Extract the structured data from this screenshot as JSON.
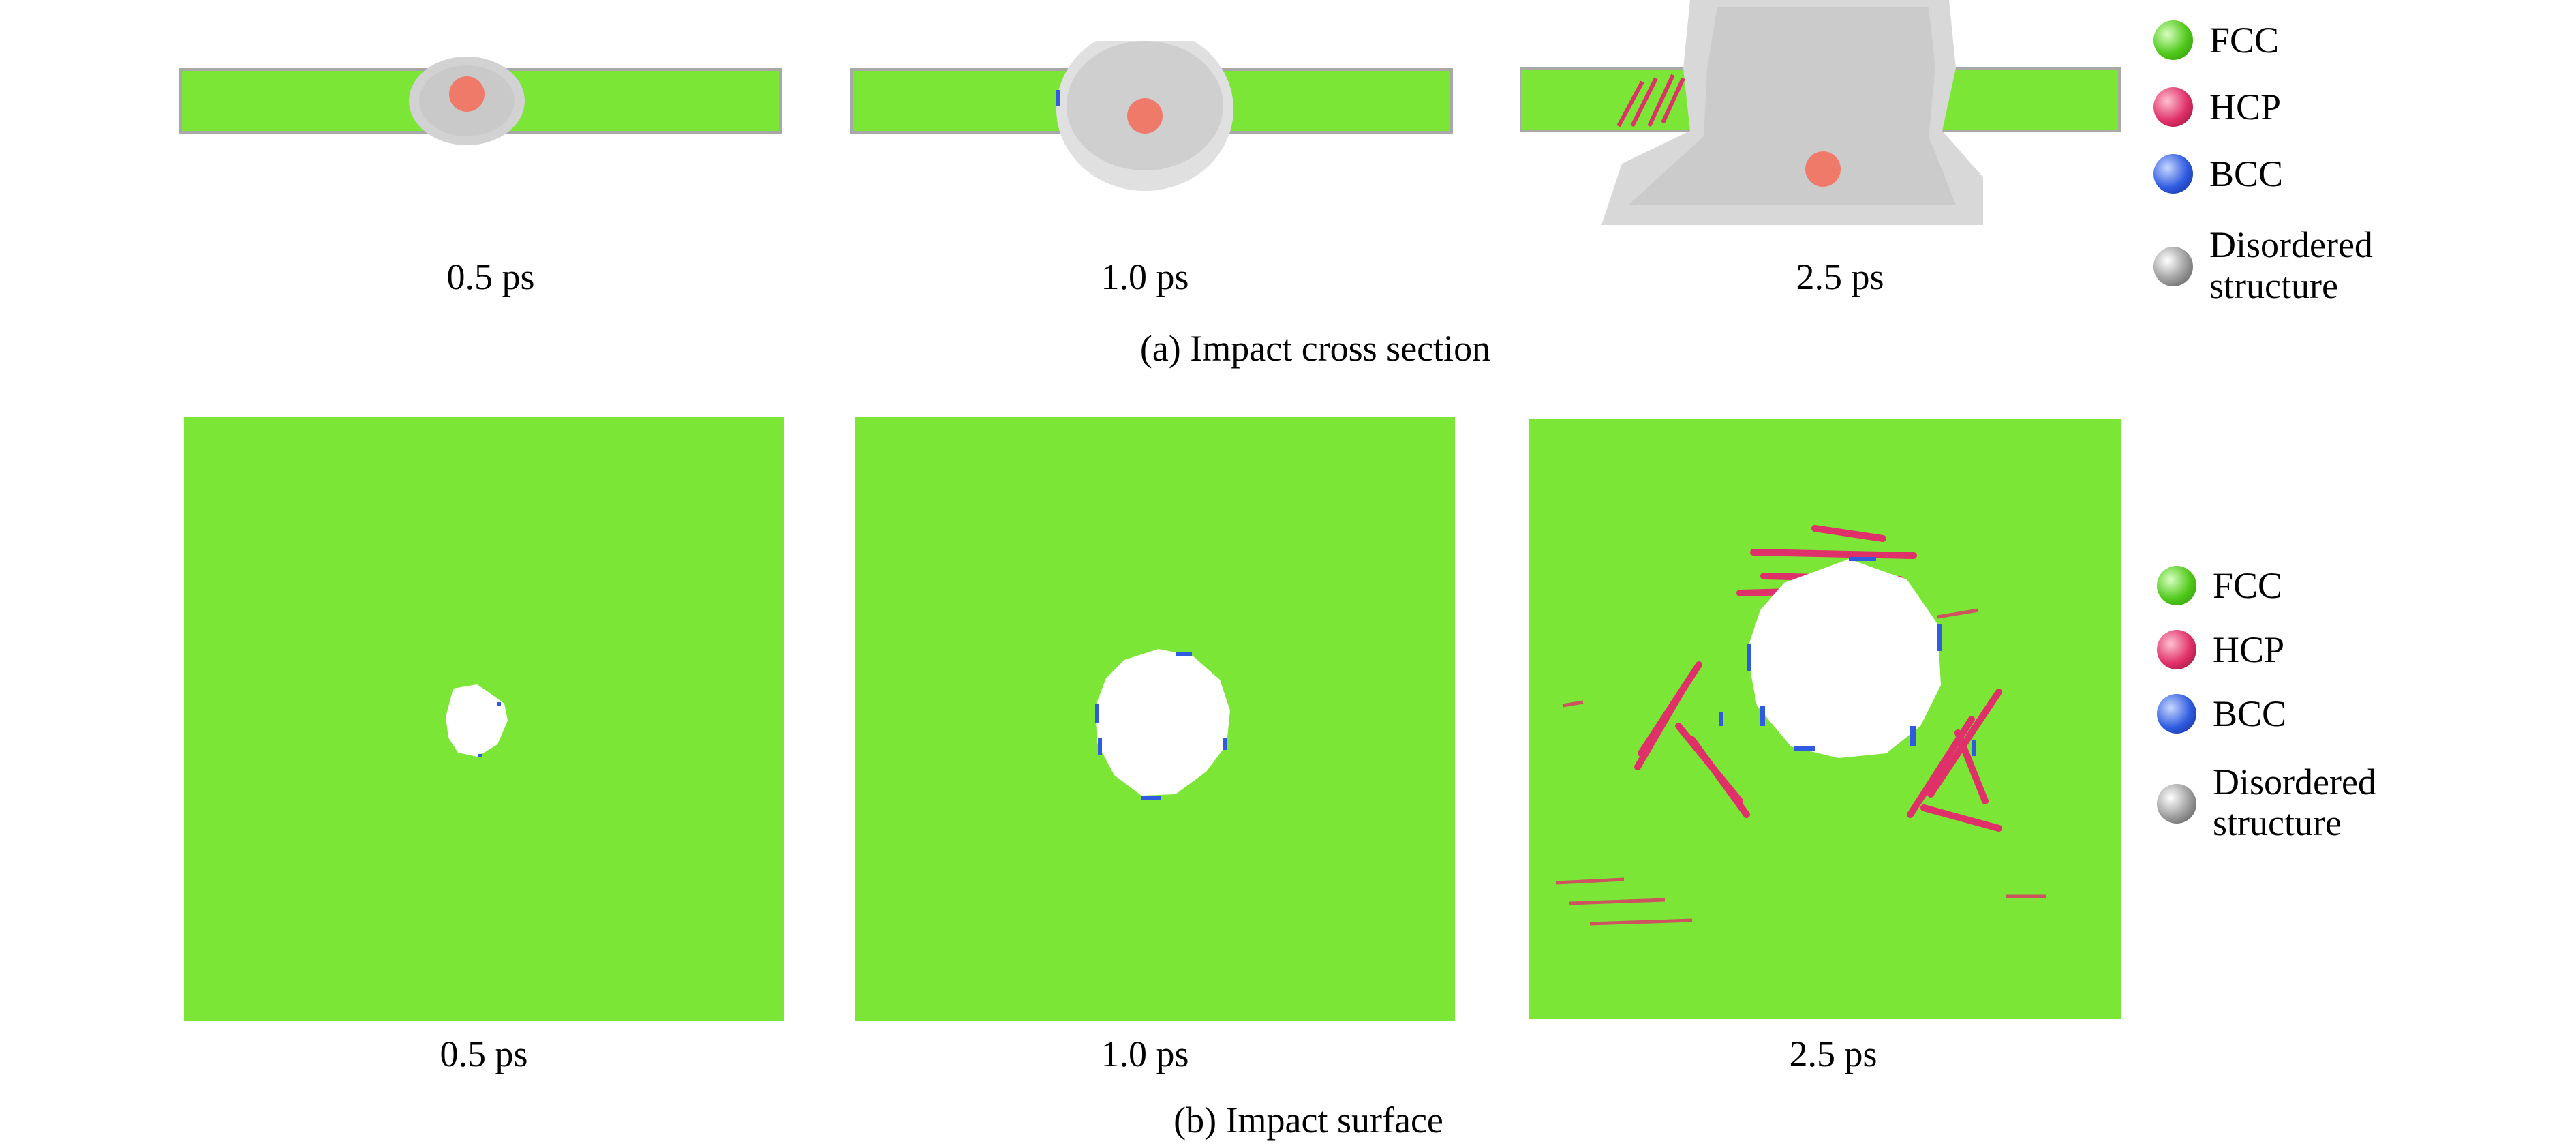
{
  "figure": {
    "panel_a": {
      "caption": "(a) Impact cross section",
      "time_labels": [
        "0.5 ps",
        "1.0 ps",
        "2.5 ps"
      ],
      "legend": [
        {
          "label": "FCC",
          "color": "#4fc81a"
        },
        {
          "label": "HCP",
          "color": "#e0306a"
        },
        {
          "label": "BCC",
          "color": "#2f5be0"
        },
        {
          "label_line1": "Disordered",
          "label_line2": "structure",
          "color": "#9a9a9a"
        }
      ]
    },
    "panel_b": {
      "caption": "(b) Impact surface",
      "time_labels": [
        "0.5 ps",
        "1.0 ps",
        "2.5 ps"
      ],
      "legend": [
        {
          "label": "FCC",
          "color": "#4fc81a"
        },
        {
          "label": "HCP",
          "color": "#e0306a"
        },
        {
          "label": "BCC",
          "color": "#2f5be0"
        },
        {
          "label_line1": "Disordered",
          "label_line2": "structure",
          "color": "#9a9a9a"
        }
      ]
    },
    "colors": {
      "fcc": "#7be636",
      "hcp": "#e0306a",
      "bcc": "#2f5be0",
      "disordered": "#d2d2d2",
      "projectile": "#f07a6a"
    }
  }
}
